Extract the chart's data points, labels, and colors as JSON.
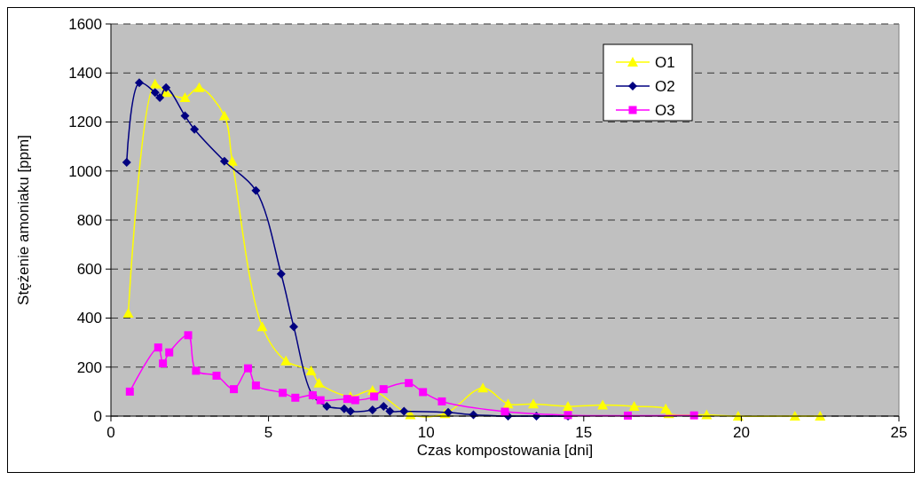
{
  "chart_data": {
    "type": "line",
    "xlabel": "Czas kompostowania [dni]",
    "ylabel": "Stężenie amoniaku [ppm]",
    "xlim": [
      0,
      25
    ],
    "xticks": [
      0,
      5,
      10,
      15,
      20,
      25
    ],
    "ylim": [
      0,
      1600
    ],
    "yticks": [
      0,
      200,
      400,
      600,
      800,
      1000,
      1200,
      1400,
      1600
    ],
    "grid": "y",
    "legend": "top right",
    "line_style": "solid",
    "series": [
      {
        "name": "O1",
        "color": "#ffff00",
        "marker": "triangle",
        "x": [
          0.55,
          1.4,
          1.75,
          2.35,
          2.8,
          3.6,
          3.85,
          4.8,
          5.55,
          6.35,
          6.6,
          7.6,
          8.3,
          9.5,
          10.6,
          11.8,
          12.6,
          13.4,
          14.5,
          15.6,
          16.6,
          17.6,
          17.7,
          18.9,
          19.9,
          21.7,
          22.5
        ],
        "values": [
          420,
          1355,
          1320,
          1300,
          1340,
          1225,
          1040,
          365,
          225,
          185,
          135,
          80,
          105,
          5,
          10,
          115,
          50,
          50,
          40,
          45,
          40,
          30,
          10,
          5,
          0,
          0,
          0
        ]
      },
      {
        "name": "O2",
        "color": "#000080",
        "marker": "diamond",
        "x": [
          0.5,
          0.9,
          1.4,
          1.55,
          1.75,
          2.35,
          2.65,
          3.6,
          4.6,
          5.4,
          5.8,
          6.4,
          6.85,
          7.4,
          7.6,
          8.3,
          8.65,
          8.85,
          9.3,
          10.7,
          11.5,
          12.6,
          13.5,
          14.5
        ],
        "values": [
          1035,
          1360,
          1320,
          1300,
          1340,
          1225,
          1170,
          1040,
          920,
          580,
          365,
          85,
          40,
          30,
          20,
          25,
          40,
          20,
          20,
          15,
          5,
          0,
          0,
          0
        ]
      },
      {
        "name": "O3",
        "color": "#ff00ff",
        "marker": "square",
        "x": [
          0.6,
          1.5,
          1.65,
          1.85,
          2.45,
          2.7,
          3.35,
          3.9,
          4.35,
          4.6,
          5.45,
          5.85,
          6.4,
          6.65,
          7.5,
          7.75,
          8.35,
          8.65,
          9.45,
          9.9,
          10.5,
          12.5,
          14.5,
          16.4,
          18.5
        ],
        "values": [
          100,
          280,
          215,
          260,
          330,
          185,
          165,
          110,
          195,
          125,
          95,
          75,
          85,
          65,
          70,
          65,
          80,
          110,
          135,
          98,
          60,
          18,
          4,
          2,
          3
        ]
      }
    ]
  }
}
